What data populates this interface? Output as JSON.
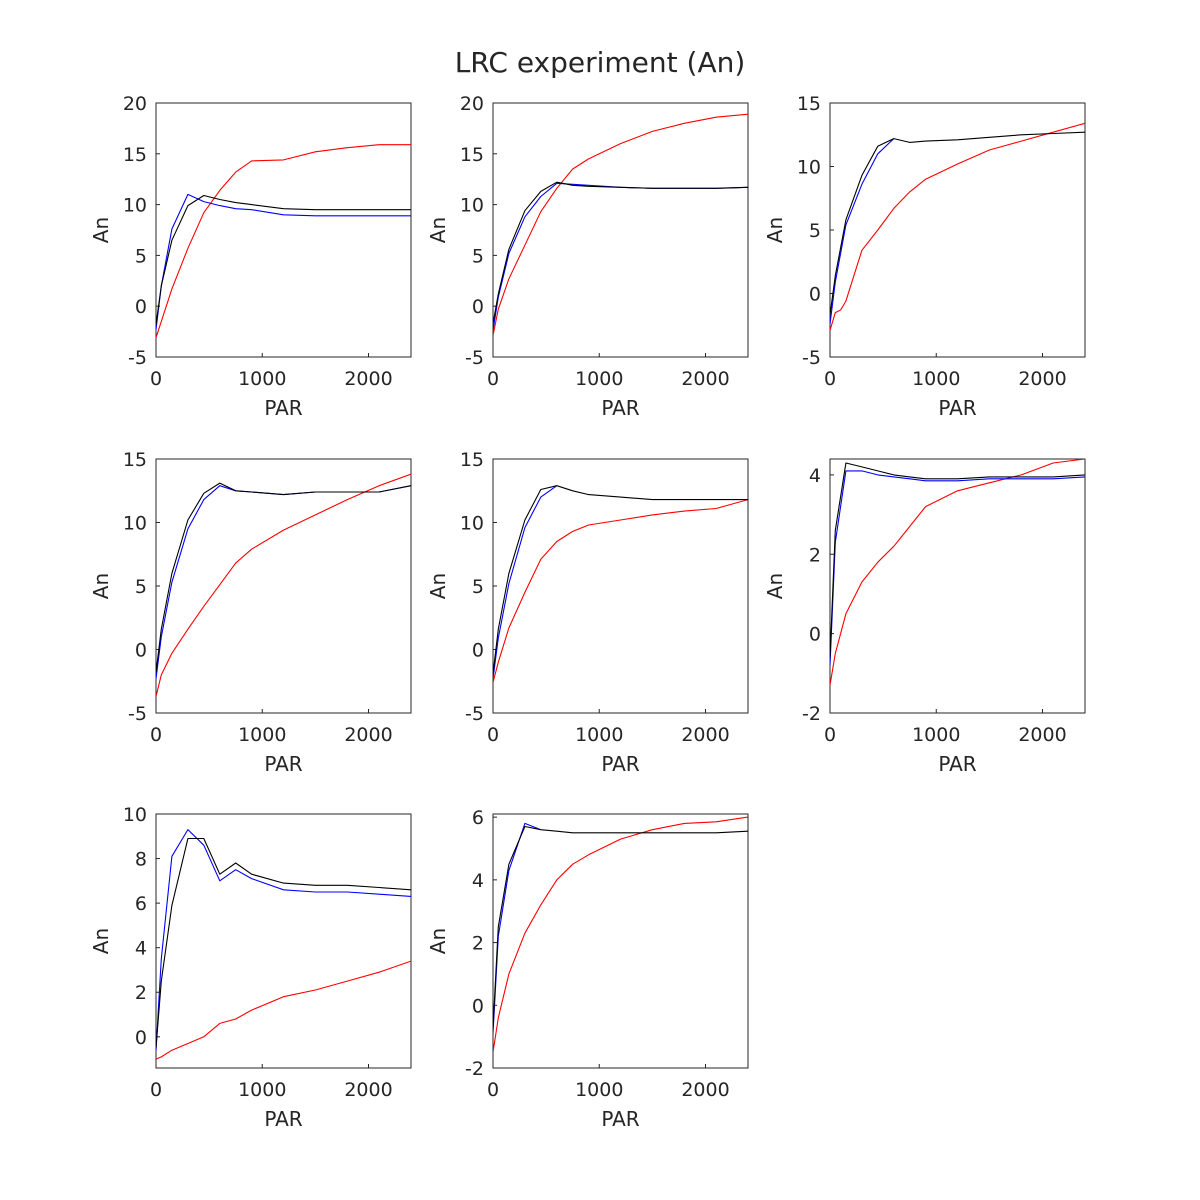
{
  "figure": {
    "title": "LRC experiment (An)"
  },
  "chart_data": [
    {
      "type": "line",
      "xlabel": "PAR",
      "ylabel": "An",
      "xlim": [
        0,
        2400
      ],
      "ylim": [
        -5,
        20
      ],
      "xticks": [
        0,
        1000,
        2000
      ],
      "yticks": [
        -5,
        0,
        5,
        10,
        15,
        20
      ],
      "series": [
        {
          "color": "#ff0000",
          "x": [
            0,
            50,
            150,
            300,
            450,
            600,
            750,
            900,
            1200,
            1500,
            1800,
            2100,
            2400
          ],
          "y": [
            -3.1,
            -1.5,
            1.7,
            5.7,
            9.2,
            11.4,
            13.2,
            14.3,
            14.4,
            15.2,
            15.6,
            15.9,
            15.9
          ]
        },
        {
          "color": "#0000ff",
          "x": [
            0,
            50,
            150,
            300,
            450,
            600,
            750,
            900,
            1200,
            1500,
            1800,
            2100,
            2400
          ],
          "y": [
            -2.3,
            2.0,
            7.6,
            11.0,
            10.3,
            9.9,
            9.6,
            9.5,
            9.0,
            8.9,
            8.9,
            8.9,
            8.9
          ]
        },
        {
          "color": "#000000",
          "x": [
            0,
            50,
            150,
            300,
            450,
            600,
            750,
            900,
            1200,
            1500,
            1800,
            2100,
            2400
          ],
          "y": [
            -1.8,
            2.0,
            6.5,
            9.9,
            10.9,
            10.5,
            10.2,
            10.0,
            9.6,
            9.5,
            9.5,
            9.5,
            9.5
          ]
        }
      ]
    },
    {
      "type": "line",
      "xlabel": "PAR",
      "ylabel": "An",
      "xlim": [
        0,
        2400
      ],
      "ylim": [
        -5,
        20
      ],
      "xticks": [
        0,
        1000,
        2000
      ],
      "yticks": [
        -5,
        0,
        5,
        10,
        15,
        20
      ],
      "series": [
        {
          "color": "#ff0000",
          "x": [
            0,
            50,
            150,
            300,
            450,
            600,
            750,
            900,
            1200,
            1500,
            1800,
            2100,
            2400
          ],
          "y": [
            -2.9,
            -0.3,
            2.7,
            6.0,
            9.3,
            11.6,
            13.5,
            14.5,
            16.0,
            17.2,
            18.0,
            18.6,
            18.9
          ]
        },
        {
          "color": "#0000ff",
          "x": [
            0,
            50,
            150,
            300,
            450,
            600,
            750,
            900,
            1200,
            1500,
            1800,
            2100,
            2400
          ],
          "y": [
            -2.4,
            0.9,
            5.2,
            8.8,
            10.8,
            12.1,
            12.0,
            11.9,
            11.7,
            11.6,
            11.6,
            11.6,
            11.7
          ]
        },
        {
          "color": "#000000",
          "x": [
            0,
            50,
            150,
            300,
            450,
            600,
            750,
            900,
            1200,
            1500,
            1800,
            2100,
            2400
          ],
          "y": [
            -1.7,
            1.2,
            5.6,
            9.4,
            11.3,
            12.2,
            11.9,
            11.8,
            11.7,
            11.6,
            11.6,
            11.6,
            11.7
          ]
        }
      ]
    },
    {
      "type": "line",
      "xlabel": "PAR",
      "ylabel": "An",
      "xlim": [
        0,
        2400
      ],
      "ylim": [
        -5,
        15
      ],
      "xticks": [
        0,
        1000,
        2000
      ],
      "yticks": [
        -5,
        0,
        5,
        10,
        15
      ],
      "series": [
        {
          "color": "#ff0000",
          "x": [
            0,
            50,
            100,
            150,
            300,
            450,
            600,
            750,
            900,
            1200,
            1500,
            1800,
            2100,
            2400
          ],
          "y": [
            -2.9,
            -1.5,
            -1.3,
            -0.6,
            3.4,
            5.0,
            6.7,
            8.0,
            9.0,
            10.2,
            11.3,
            12.0,
            12.7,
            13.4
          ]
        },
        {
          "color": "#0000ff",
          "x": [
            0,
            50,
            150,
            300,
            450,
            600
          ],
          "y": [
            -2.4,
            0.9,
            5.4,
            8.6,
            11.0,
            12.2
          ]
        },
        {
          "color": "#000000",
          "x": [
            0,
            50,
            150,
            300,
            450,
            600,
            750,
            900,
            1200,
            1500,
            1800,
            2100,
            2400
          ],
          "y": [
            -1.7,
            1.4,
            5.8,
            9.3,
            11.6,
            12.2,
            11.9,
            12.0,
            12.1,
            12.3,
            12.5,
            12.6,
            12.7
          ]
        }
      ]
    },
    {
      "type": "line",
      "xlabel": "PAR",
      "ylabel": "An",
      "xlim": [
        0,
        2400
      ],
      "ylim": [
        -5,
        15
      ],
      "xticks": [
        0,
        1000,
        2000
      ],
      "yticks": [
        -5,
        0,
        5,
        10,
        15
      ],
      "series": [
        {
          "color": "#ff0000",
          "x": [
            0,
            50,
            150,
            300,
            450,
            600,
            750,
            900,
            1200,
            1500,
            1800,
            2100,
            2400
          ],
          "y": [
            -3.7,
            -2.0,
            -0.3,
            1.6,
            3.4,
            5.1,
            6.8,
            7.9,
            9.4,
            10.6,
            11.8,
            12.9,
            13.8
          ]
        },
        {
          "color": "#0000ff",
          "x": [
            0,
            50,
            150,
            300,
            450,
            600,
            750,
            900,
            1200,
            1500,
            1800,
            2100,
            2400
          ],
          "y": [
            -2.3,
            1.0,
            5.3,
            9.5,
            11.8,
            12.9,
            12.5,
            12.4,
            12.2,
            12.4,
            12.4,
            12.4,
            12.9
          ]
        },
        {
          "color": "#000000",
          "x": [
            0,
            50,
            150,
            300,
            450,
            600,
            750,
            900,
            1200,
            1500,
            1800,
            2100,
            2400
          ],
          "y": [
            -1.8,
            1.6,
            6.0,
            10.2,
            12.3,
            13.1,
            12.5,
            12.4,
            12.2,
            12.4,
            12.4,
            12.4,
            12.9
          ]
        }
      ]
    },
    {
      "type": "line",
      "xlabel": "PAR",
      "ylabel": "An",
      "xlim": [
        0,
        2400
      ],
      "ylim": [
        -5,
        15
      ],
      "xticks": [
        0,
        1000,
        2000
      ],
      "yticks": [
        -5,
        0,
        5,
        10,
        15
      ],
      "series": [
        {
          "color": "#ff0000",
          "x": [
            0,
            50,
            150,
            300,
            450,
            600,
            750,
            900,
            1200,
            1500,
            1800,
            2100,
            2400
          ],
          "y": [
            -2.6,
            -1.0,
            1.7,
            4.5,
            7.1,
            8.5,
            9.3,
            9.8,
            10.2,
            10.6,
            10.9,
            11.1,
            11.8
          ]
        },
        {
          "color": "#0000ff",
          "x": [
            0,
            50,
            150,
            300,
            450,
            600
          ],
          "y": [
            -2.3,
            0.9,
            5.2,
            9.6,
            12.0,
            12.9
          ]
        },
        {
          "color": "#000000",
          "x": [
            0,
            50,
            150,
            300,
            450,
            600,
            750,
            900,
            1200,
            1500,
            1800,
            2100,
            2400
          ],
          "y": [
            -1.9,
            1.6,
            6.0,
            10.2,
            12.6,
            12.9,
            12.5,
            12.2,
            12.0,
            11.8,
            11.8,
            11.8,
            11.8
          ]
        }
      ]
    },
    {
      "type": "line",
      "xlabel": "PAR",
      "ylabel": "An",
      "xlim": [
        0,
        2400
      ],
      "ylim": [
        -2,
        4.4
      ],
      "xticks": [
        0,
        1000,
        2000
      ],
      "yticks": [
        -2,
        0,
        2,
        4
      ],
      "series": [
        {
          "color": "#ff0000",
          "x": [
            0,
            50,
            150,
            300,
            450,
            600,
            750,
            900,
            1200,
            1500,
            1800,
            2100,
            2400
          ],
          "y": [
            -1.3,
            -0.5,
            0.5,
            1.3,
            1.8,
            2.2,
            2.7,
            3.2,
            3.6,
            3.8,
            4.0,
            4.3,
            4.4
          ]
        },
        {
          "color": "#0000ff",
          "x": [
            0,
            50,
            150,
            300,
            450,
            600,
            750,
            900,
            1200,
            1500,
            1800,
            2100,
            2400
          ],
          "y": [
            -0.8,
            2.3,
            4.1,
            4.1,
            4.0,
            3.95,
            3.9,
            3.85,
            3.85,
            3.9,
            3.9,
            3.9,
            3.95
          ]
        },
        {
          "color": "#000000",
          "x": [
            0,
            50,
            150,
            300,
            450,
            600,
            750,
            900,
            1200,
            1500,
            1800,
            2100,
            2400
          ],
          "y": [
            -0.6,
            2.6,
            4.3,
            4.2,
            4.1,
            4.0,
            3.95,
            3.9,
            3.9,
            3.95,
            3.95,
            3.95,
            4.0
          ]
        }
      ]
    },
    {
      "type": "line",
      "xlabel": "PAR",
      "ylabel": "An",
      "xlim": [
        0,
        2400
      ],
      "ylim": [
        -1.4,
        10
      ],
      "xticks": [
        0,
        1000,
        2000
      ],
      "yticks": [
        0,
        2,
        4,
        6,
        8,
        10
      ],
      "series": [
        {
          "color": "#ff0000",
          "x": [
            0,
            50,
            150,
            300,
            450,
            600,
            750,
            900,
            1200,
            1500,
            1800,
            2100,
            2400
          ],
          "y": [
            -1.0,
            -0.9,
            -0.6,
            -0.3,
            0.0,
            0.6,
            0.8,
            1.2,
            1.8,
            2.1,
            2.5,
            2.9,
            3.4
          ]
        },
        {
          "color": "#0000ff",
          "x": [
            0,
            50,
            150,
            300,
            450,
            600,
            750,
            900,
            1200,
            1500,
            1800,
            2100,
            2400
          ],
          "y": [
            -0.6,
            3.5,
            8.1,
            9.3,
            8.6,
            7.0,
            7.5,
            7.1,
            6.6,
            6.5,
            6.5,
            6.4,
            6.3
          ]
        },
        {
          "color": "#000000",
          "x": [
            0,
            50,
            150,
            300,
            450,
            600,
            750,
            900,
            1200,
            1500,
            1800,
            2100,
            2400
          ],
          "y": [
            -0.5,
            2.5,
            5.9,
            8.9,
            8.9,
            7.3,
            7.8,
            7.3,
            6.9,
            6.8,
            6.8,
            6.7,
            6.6
          ]
        }
      ]
    },
    {
      "type": "line",
      "xlabel": "PAR",
      "ylabel": "An",
      "xlim": [
        0,
        2400
      ],
      "ylim": [
        -2,
        6.1
      ],
      "xticks": [
        0,
        1000,
        2000
      ],
      "yticks": [
        -2,
        0,
        2,
        4,
        6
      ],
      "series": [
        {
          "color": "#ff0000",
          "x": [
            0,
            50,
            150,
            300,
            450,
            600,
            750,
            900,
            1200,
            1500,
            1800,
            2100,
            2400
          ],
          "y": [
            -1.5,
            -0.4,
            1.0,
            2.3,
            3.2,
            4.0,
            4.5,
            4.8,
            5.3,
            5.6,
            5.8,
            5.85,
            6.0
          ]
        },
        {
          "color": "#0000ff",
          "x": [
            0,
            50,
            150,
            300,
            450
          ],
          "y": [
            -0.9,
            2.2,
            4.3,
            5.8,
            5.6
          ]
        },
        {
          "color": "#000000",
          "x": [
            0,
            50,
            150,
            300,
            450,
            600,
            750,
            900,
            1200,
            1500,
            1800,
            2100,
            2400
          ],
          "y": [
            -0.7,
            2.5,
            4.5,
            5.7,
            5.6,
            5.55,
            5.5,
            5.5,
            5.5,
            5.5,
            5.5,
            5.5,
            5.55
          ]
        }
      ]
    }
  ]
}
